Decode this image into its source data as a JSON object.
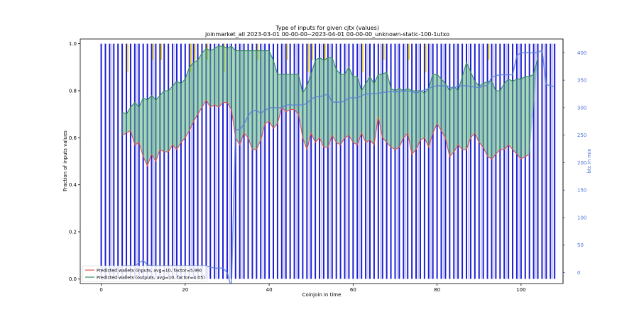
{
  "chart_data": {
    "type": "bar",
    "title": "Type of inputs for given cjtx (values)",
    "subtitle": "joinmarket_all 2023-03-01 00-00-00--2023-04-01 00-00-00_unknown-static-100-1utxo",
    "xlabel": "Coinjoin in time",
    "ylabel": "Fraction of inputs values",
    "y2label": "btc in mix",
    "xlim": [
      -5,
      110
    ],
    "ylim": [
      -0.02,
      1.02
    ],
    "y2lim": [
      -20,
      425
    ],
    "xticks": [
      "0",
      "20",
      "40",
      "60",
      "80",
      "100"
    ],
    "yticks": [
      "0.0",
      "0.2",
      "0.4",
      "0.6",
      "0.8",
      "1.0"
    ],
    "y2ticks": [
      "0",
      "50",
      "100",
      "150",
      "200",
      "250",
      "300",
      "350",
      "400"
    ],
    "colors": {
      "bar_main": "#1f1fd6",
      "bar_light": "#c8c8ee",
      "bar_yellow": "#f5d800",
      "bar_orange": "#d87000",
      "inputs_line": "#e05050",
      "outputs_line": "#2e8b57",
      "fill": "#5fb878",
      "btc_line": "#5a7fd6"
    },
    "legend": [
      {
        "label": "Predicted wallets (inputs, avg=10, factor=5.99)",
        "color": "#e05050"
      },
      {
        "label": "Predicted wallets (outputs, avg=10, factor=4.05)",
        "color": "#2e8b57"
      }
    ],
    "legend_position": "lower-left",
    "series": [
      {
        "name": "inputs_lower",
        "x": [
          5,
          6,
          7,
          8,
          9,
          10,
          11,
          12,
          13,
          14,
          15,
          16,
          17,
          18,
          19,
          20,
          21,
          22,
          23,
          24,
          25,
          26,
          27,
          28,
          29,
          30,
          31,
          32,
          33,
          34,
          35,
          36,
          37,
          38,
          39,
          40,
          41,
          42,
          43,
          44,
          45,
          46,
          47,
          48,
          49,
          50,
          51,
          52,
          53,
          54,
          55,
          56,
          57,
          58,
          59,
          60,
          61,
          62,
          63,
          64,
          65,
          66,
          67,
          68,
          69,
          70,
          71,
          72,
          73,
          74,
          75,
          76,
          77,
          78,
          79,
          80,
          81,
          82,
          83,
          84,
          85,
          86,
          87,
          88,
          89,
          90,
          91,
          92,
          93,
          94,
          95,
          96,
          97,
          98,
          99,
          100,
          101,
          102
        ],
        "values": [
          0.61,
          0.62,
          0.63,
          0.57,
          0.58,
          0.52,
          0.48,
          0.53,
          0.5,
          0.55,
          0.54,
          0.54,
          0.57,
          0.55,
          0.58,
          0.6,
          0.63,
          0.67,
          0.7,
          0.73,
          0.76,
          0.73,
          0.74,
          0.73,
          0.75,
          0.75,
          0.72,
          0.6,
          0.57,
          0.62,
          0.6,
          0.55,
          0.55,
          0.59,
          0.66,
          0.67,
          0.64,
          0.66,
          0.73,
          0.71,
          0.72,
          0.72,
          0.7,
          0.6,
          0.55,
          0.62,
          0.58,
          0.6,
          0.56,
          0.56,
          0.61,
          0.58,
          0.57,
          0.6,
          0.61,
          0.58,
          0.57,
          0.62,
          0.58,
          0.59,
          0.57,
          0.69,
          0.6,
          0.58,
          0.56,
          0.55,
          0.56,
          0.6,
          0.62,
          0.53,
          0.55,
          0.59,
          0.6,
          0.56,
          0.62,
          0.66,
          0.63,
          0.6,
          0.52,
          0.54,
          0.57,
          0.55,
          0.55,
          0.6,
          0.62,
          0.58,
          0.56,
          0.52,
          0.51,
          0.53,
          0.55,
          0.55,
          0.57,
          0.55,
          0.53,
          0.51,
          0.52,
          0.53
        ]
      },
      {
        "name": "outputs_upper",
        "x": [
          5,
          6,
          7,
          8,
          9,
          10,
          11,
          12,
          13,
          14,
          15,
          16,
          17,
          18,
          19,
          20,
          21,
          22,
          23,
          24,
          25,
          26,
          27,
          28,
          29,
          30,
          31,
          32,
          33,
          34,
          35,
          36,
          37,
          38,
          39,
          40,
          41,
          42,
          43,
          44,
          45,
          46,
          47,
          48,
          49,
          50,
          51,
          52,
          53,
          54,
          55,
          56,
          57,
          58,
          59,
          60,
          61,
          62,
          63,
          64,
          65,
          66,
          67,
          68,
          69,
          70,
          71,
          72,
          73,
          74,
          75,
          76,
          77,
          78,
          79,
          80,
          81,
          82,
          83,
          84,
          85,
          86,
          87,
          88,
          89,
          90,
          91,
          92,
          93,
          94,
          95,
          96,
          97,
          98,
          99,
          100,
          101,
          102,
          103,
          104
        ],
        "values": [
          0.71,
          0.7,
          0.73,
          0.75,
          0.73,
          0.77,
          0.76,
          0.78,
          0.76,
          0.78,
          0.8,
          0.8,
          0.82,
          0.84,
          0.83,
          0.85,
          0.9,
          0.92,
          0.93,
          0.96,
          0.98,
          0.97,
          0.98,
          0.99,
          0.99,
          0.98,
          0.99,
          0.97,
          0.97,
          0.97,
          0.97,
          0.97,
          0.97,
          0.97,
          0.97,
          0.97,
          0.93,
          0.87,
          0.87,
          0.87,
          0.87,
          0.87,
          0.87,
          0.79,
          0.82,
          0.87,
          0.93,
          0.94,
          0.93,
          0.94,
          0.94,
          0.89,
          0.87,
          0.87,
          0.9,
          0.86,
          0.86,
          0.8,
          0.83,
          0.86,
          0.83,
          0.87,
          0.87,
          0.88,
          0.81,
          0.8,
          0.81,
          0.8,
          0.81,
          0.8,
          0.8,
          0.8,
          0.79,
          0.81,
          0.87,
          0.87,
          0.85,
          0.83,
          0.8,
          0.82,
          0.8,
          0.86,
          0.92,
          0.88,
          0.84,
          0.82,
          0.83,
          0.84,
          0.84,
          0.8,
          0.8,
          0.83,
          0.85,
          0.84,
          0.85,
          0.85,
          0.86,
          0.86,
          0.87,
          0.94
        ]
      },
      {
        "name": "btc_in_mix",
        "axis": "y2",
        "x": [
          0,
          1,
          2,
          3,
          4,
          5,
          6,
          7,
          8,
          9,
          10,
          11,
          12,
          13,
          14,
          15,
          16,
          17,
          18,
          19,
          20,
          21,
          22,
          23,
          24,
          25,
          26,
          27,
          28,
          29,
          30,
          31,
          32,
          33,
          34,
          35,
          36,
          37,
          38,
          39,
          40,
          41,
          42,
          43,
          44,
          45,
          46,
          47,
          48,
          49,
          50,
          51,
          52,
          53,
          54,
          55,
          56,
          57,
          58,
          59,
          60,
          61,
          62,
          63,
          64,
          65,
          66,
          67,
          68,
          69,
          70,
          71,
          72,
          73,
          74,
          75,
          76,
          77,
          78,
          79,
          80,
          81,
          82,
          83,
          84,
          85,
          86,
          87,
          88,
          89,
          90,
          91,
          92,
          93,
          94,
          95,
          96,
          97,
          98,
          99,
          100,
          101,
          102,
          103,
          104,
          105,
          106,
          107,
          108
        ],
        "values": [
          8,
          8,
          8,
          8,
          8,
          12,
          12,
          12,
          12,
          18,
          22,
          14,
          12,
          12,
          12,
          12,
          12,
          12,
          12,
          12,
          12,
          12,
          12,
          12,
          12,
          12,
          10,
          8,
          8,
          8,
          0,
          -28,
          260,
          260,
          270,
          285,
          295,
          295,
          290,
          295,
          300,
          300,
          300,
          300,
          305,
          305,
          305,
          305,
          305,
          308,
          315,
          320,
          320,
          322,
          325,
          310,
          310,
          310,
          312,
          318,
          318,
          318,
          322,
          325,
          325,
          326,
          326,
          328,
          328,
          330,
          328,
          330,
          330,
          330,
          330,
          326,
          330,
          332,
          335,
          338,
          340,
          340,
          340,
          338,
          335,
          340,
          340,
          340,
          338,
          338,
          336,
          340,
          340,
          356,
          358,
          360,
          360,
          360,
          360,
          395,
          400,
          400,
          400,
          400,
          400,
          405,
          342,
          340,
          338
        ]
      }
    ],
    "bar_groups": {
      "main_x": [
        0,
        1,
        2,
        3,
        4,
        5,
        6,
        7,
        8,
        9,
        10,
        11,
        12,
        13,
        14,
        15,
        16,
        17,
        18,
        19,
        20,
        21,
        22,
        23,
        24,
        25,
        26,
        27,
        28,
        29,
        30,
        31,
        32,
        33,
        34,
        35,
        36,
        37,
        38,
        39,
        40,
        41,
        42,
        43,
        44,
        45,
        46,
        47,
        48,
        49,
        50,
        51,
        52,
        53,
        54,
        55,
        56,
        57,
        58,
        59,
        60,
        61,
        62,
        63,
        64,
        65,
        66,
        67,
        68,
        69,
        70,
        71,
        72,
        73,
        74,
        75,
        76,
        77,
        78,
        79,
        80,
        81,
        82,
        83,
        84,
        85,
        86,
        87,
        88,
        89,
        90,
        91,
        92,
        93,
        94,
        95,
        96,
        97,
        98,
        99,
        100,
        101,
        102,
        103,
        104,
        105,
        106,
        107,
        108
      ],
      "light_x": [
        2,
        8,
        12,
        17,
        21,
        27,
        30,
        33,
        38,
        43,
        46,
        49,
        52,
        54,
        58,
        61,
        63,
        66,
        70,
        72,
        75,
        78,
        81,
        84,
        87,
        90,
        93,
        96,
        99,
        103,
        105,
        107
      ],
      "yellow_x": [
        6,
        12,
        14,
        21,
        22,
        25,
        29,
        37,
        44,
        49,
        50,
        53,
        62,
        67,
        73,
        77,
        92
      ]
    },
    "x_ticks_values": [
      0,
      20,
      40,
      60,
      80,
      100
    ],
    "y_ticks_values": [
      0,
      0.2,
      0.4,
      0.6,
      0.8,
      1.0
    ],
    "y2_ticks_values": [
      0,
      50,
      100,
      150,
      200,
      250,
      300,
      350,
      400
    ]
  }
}
